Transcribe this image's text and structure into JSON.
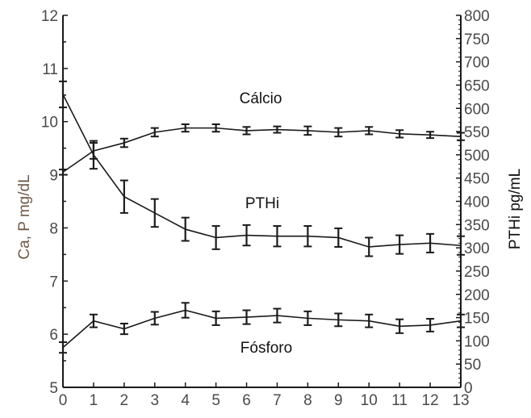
{
  "chart_data": {
    "type": "line",
    "x": [
      0,
      1,
      2,
      3,
      4,
      5,
      6,
      7,
      8,
      9,
      10,
      11,
      12,
      13
    ],
    "xlim": [
      0,
      13
    ],
    "x_ticks": [
      "0",
      "1",
      "2",
      "3",
      "4",
      "5",
      "6",
      "7",
      "8",
      "9",
      "10",
      "11",
      "12",
      "13"
    ],
    "ylabel_left": "Ca, P mg/dL",
    "ylim_left": [
      5,
      12
    ],
    "y_ticks_left": [
      "5",
      "6",
      "7",
      "8",
      "9",
      "10",
      "11",
      "12"
    ],
    "ylabel_right": "PTHi pg/mL",
    "ylim_right": [
      0,
      800
    ],
    "y_ticks_right": [
      "0",
      "50",
      "100",
      "150",
      "200",
      "250",
      "300",
      "350",
      "400",
      "450",
      "500",
      "550",
      "600",
      "650",
      "700",
      "750",
      "800"
    ],
    "grid": false,
    "series": [
      {
        "name": "Cálcio",
        "axis": "left",
        "values": [
          9.05,
          9.45,
          9.6,
          9.8,
          9.88,
          9.88,
          9.83,
          9.85,
          9.83,
          9.8,
          9.83,
          9.77,
          9.75,
          9.72
        ],
        "errors": [
          0.05,
          0.15,
          0.08,
          0.08,
          0.07,
          0.07,
          0.07,
          0.06,
          0.08,
          0.08,
          0.07,
          0.07,
          0.06,
          0.07
        ]
      },
      {
        "name": "PTHi",
        "axis": "right",
        "values": [
          630,
          500,
          410,
          375,
          340,
          322,
          327,
          325,
          325,
          322,
          302,
          307,
          310,
          305
        ],
        "errors": [
          28,
          30,
          35,
          30,
          25,
          25,
          22,
          22,
          22,
          20,
          20,
          20,
          20,
          20
        ]
      },
      {
        "name": "Fósforo",
        "axis": "left",
        "values": [
          5.75,
          6.25,
          6.1,
          6.3,
          6.45,
          6.3,
          6.32,
          6.35,
          6.3,
          6.27,
          6.25,
          6.15,
          6.17,
          6.25
        ],
        "errors": [
          0.1,
          0.12,
          0.1,
          0.12,
          0.14,
          0.13,
          0.13,
          0.13,
          0.13,
          0.12,
          0.12,
          0.13,
          0.12,
          0.12
        ]
      }
    ],
    "colors": {
      "lines": "#1a1a1a",
      "axes": "#1a1a1a",
      "tick_labels": "#4a4a4a",
      "left_axis_title": "#6e5a4a",
      "right_axis_title": "#111111"
    }
  }
}
